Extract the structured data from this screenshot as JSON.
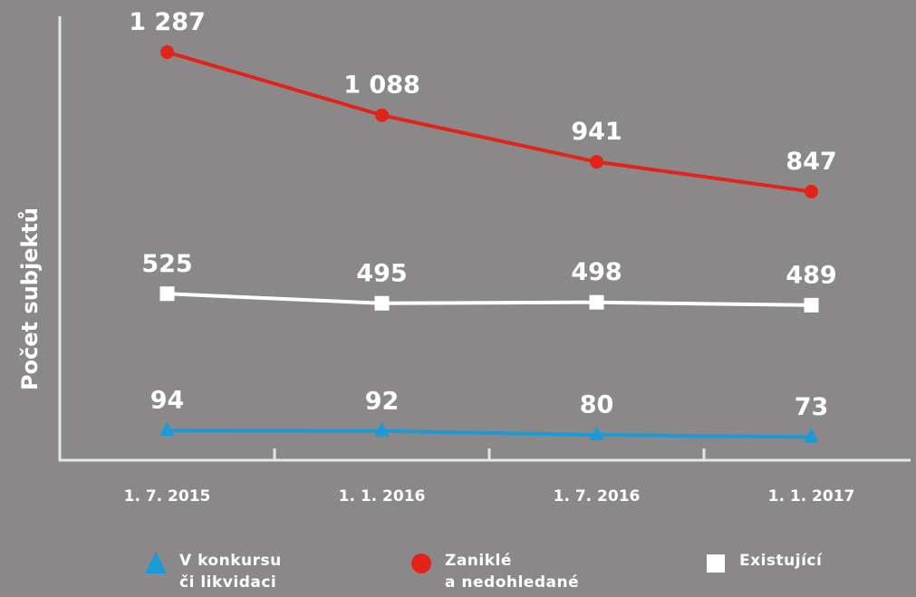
{
  "chart_data": {
    "type": "line",
    "y_label": "Počet subjektů",
    "categories": [
      "1. 7. 2015",
      "1. 1. 2016",
      "1. 7. 2016",
      "1. 1. 2017"
    ],
    "ylim": [
      0,
      1400
    ],
    "series": [
      {
        "name": "V konkursu\nči likvidaci",
        "color": "#1a9ad6",
        "marker": "triangle",
        "values": [
          94,
          92,
          80,
          73
        ]
      },
      {
        "name": "Zaniklé\na nedohledané",
        "color": "#e2231a",
        "marker": "circle",
        "values": [
          1287,
          1088,
          941,
          847
        ],
        "value_labels": [
          "1 287",
          "1 088",
          "941",
          "847"
        ]
      },
      {
        "name": "Existující",
        "color": "#ffffff",
        "marker": "square",
        "values": [
          525,
          495,
          498,
          489
        ]
      }
    ]
  }
}
